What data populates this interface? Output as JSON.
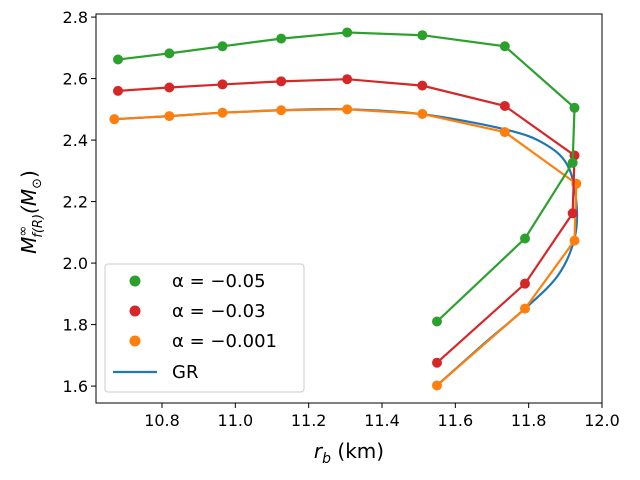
{
  "chart_data": {
    "type": "line",
    "xlabel_main": "r",
    "xlabel_sub": "b",
    "xlabel_unit": " (km)",
    "ylabel_main": "M",
    "ylabel_sup": "∞",
    "ylabel_sub": "f(R)",
    "ylabel_unit_open": "(M",
    "ylabel_unit_sub": "⊙",
    "ylabel_unit_close": ")",
    "xlim": [
      10.62,
      12.0
    ],
    "ylim": [
      1.545,
      2.81
    ],
    "x_ticks": [
      10.8,
      11.0,
      11.2,
      11.4,
      11.6,
      11.8,
      12.0
    ],
    "x_tick_labels": [
      "10.8",
      "11.0",
      "11.2",
      "11.4",
      "11.6",
      "11.8",
      "12.0"
    ],
    "y_ticks": [
      1.6,
      1.8,
      2.0,
      2.2,
      2.4,
      2.6,
      2.8
    ],
    "y_tick_labels": [
      "1.6",
      "1.8",
      "2.0",
      "2.2",
      "2.4",
      "2.6",
      "2.8"
    ],
    "grid": false,
    "legend_position": "lower-left",
    "legend": [
      {
        "label": "α = −0.05",
        "color": "#2ca02c",
        "kind": "marker"
      },
      {
        "label": "α = −0.03",
        "color": "#d62728",
        "kind": "marker"
      },
      {
        "label": "α = −0.001",
        "color": "#ff7f0e",
        "kind": "marker"
      },
      {
        "label": "GR",
        "color": "#1f77b4",
        "kind": "line"
      }
    ],
    "series": [
      {
        "name": "α = −0.05",
        "color": "#2ca02c",
        "x": [
          10.68,
          10.82,
          10.965,
          11.125,
          11.305,
          11.51,
          11.735,
          11.925,
          11.92,
          11.79,
          11.55
        ],
        "y": [
          2.662,
          2.682,
          2.705,
          2.73,
          2.75,
          2.741,
          2.705,
          2.505,
          2.326,
          2.08,
          1.81
        ]
      },
      {
        "name": "α = −0.03",
        "color": "#d62728",
        "x": [
          10.68,
          10.82,
          10.965,
          11.125,
          11.305,
          11.51,
          11.735,
          11.925,
          11.92,
          11.79,
          11.55
        ],
        "y": [
          2.56,
          2.571,
          2.581,
          2.591,
          2.598,
          2.577,
          2.511,
          2.35,
          2.162,
          1.933,
          1.676
        ]
      },
      {
        "name": "α = −0.001",
        "color": "#ff7f0e",
        "x": [
          10.67,
          10.82,
          10.965,
          11.125,
          11.305,
          11.51,
          11.735,
          11.93,
          11.925,
          11.79,
          11.55
        ],
        "y": [
          2.468,
          2.478,
          2.489,
          2.497,
          2.5,
          2.485,
          2.426,
          2.258,
          2.073,
          1.852,
          1.602
        ]
      },
      {
        "name": "GR",
        "color": "#1f77b4",
        "smooth": true,
        "x": [
          10.67,
          10.82,
          10.965,
          11.125,
          11.305,
          11.51,
          11.735,
          11.84,
          11.905,
          11.93,
          11.925,
          11.88,
          11.79,
          11.68,
          11.55
        ],
        "y": [
          2.468,
          2.478,
          2.489,
          2.497,
          2.5,
          2.484,
          2.435,
          2.39,
          2.32,
          2.2,
          2.08,
          1.96,
          1.852,
          1.74,
          1.602
        ]
      }
    ]
  }
}
